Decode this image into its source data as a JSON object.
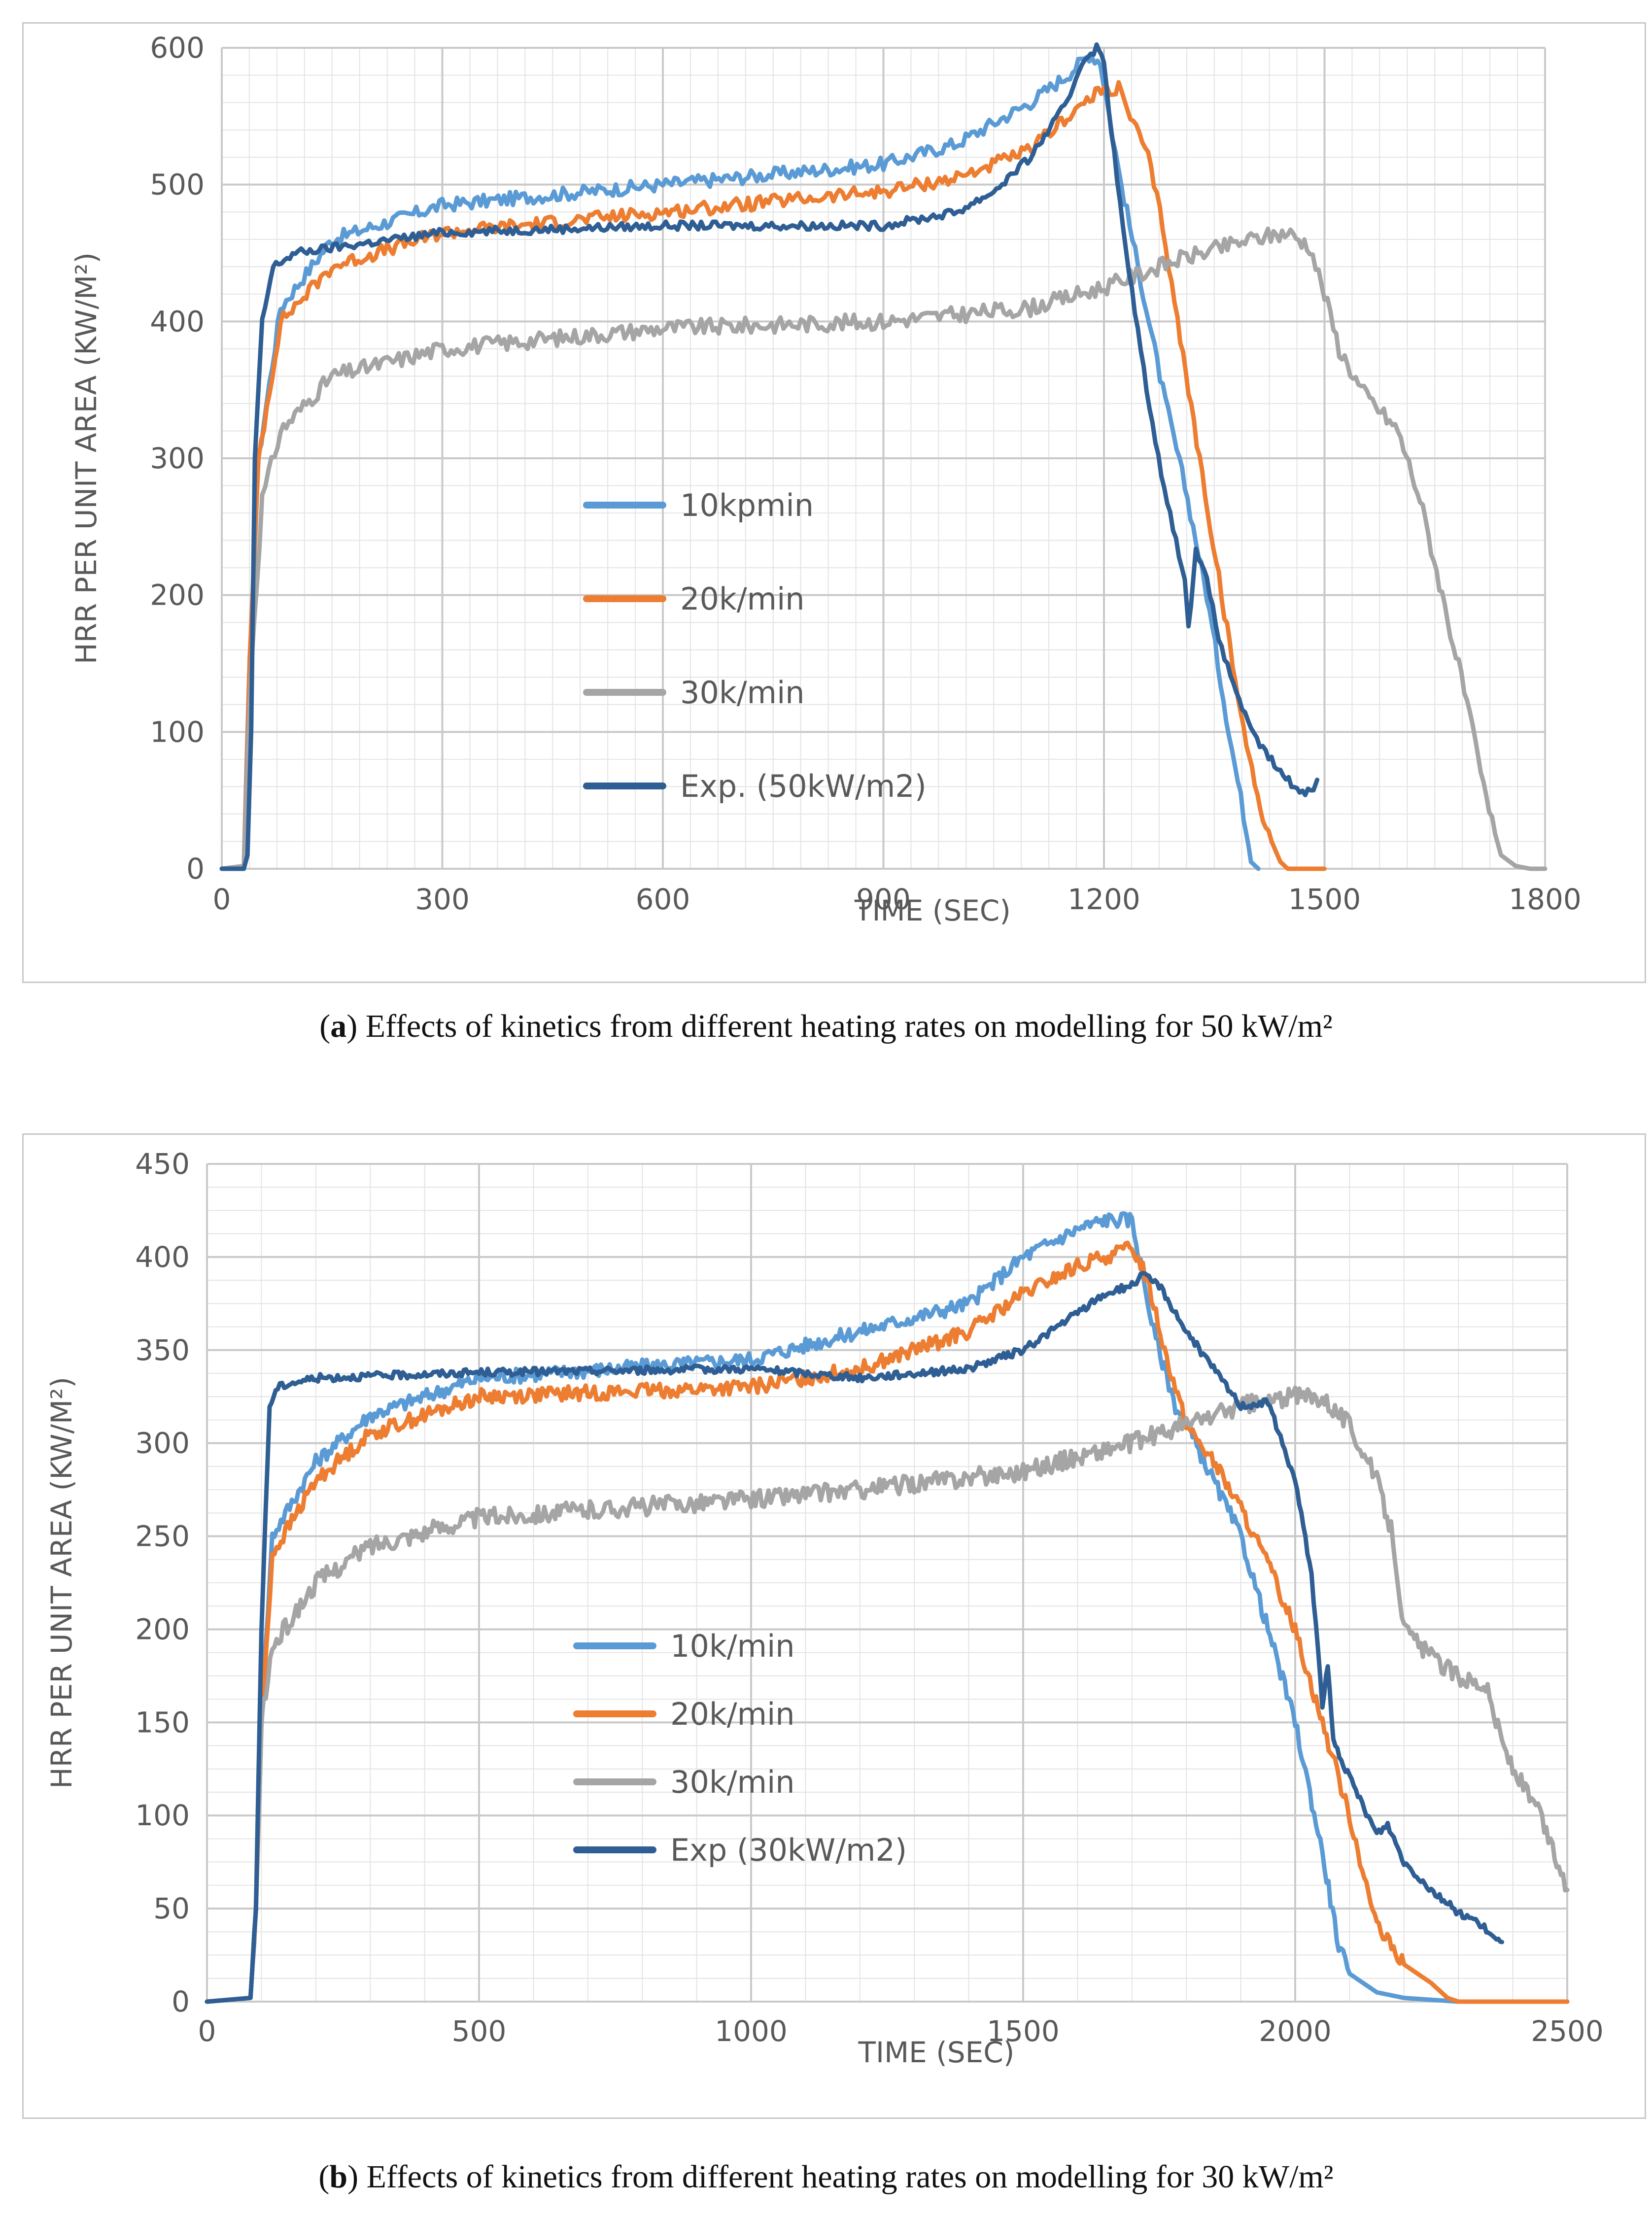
{
  "chart_data": [
    {
      "type": "line",
      "panel": "a",
      "xlabel": "TIME (SEC)",
      "ylabel": "HRR PER UNIT AREA (KW/M²)",
      "xlim": [
        0,
        1800
      ],
      "ylim": [
        0,
        600
      ],
      "xticks": [
        0,
        300,
        600,
        900,
        1200,
        1500,
        1800
      ],
      "yticks": [
        0,
        100,
        200,
        300,
        400,
        500,
        600
      ],
      "grid": true,
      "caption_letter": "a",
      "caption_text": ") Effects of kinetics from different heating rates on modelling for 50 kW/m²",
      "series": [
        {
          "name": "10kpmin",
          "color": "#5b9bd5",
          "noise": 5,
          "x": [
            0,
            30,
            38,
            50,
            80,
            150,
            300,
            600,
            900,
            1000,
            1100,
            1150,
            1180,
            1195,
            1220,
            1250,
            1280,
            1310,
            1340,
            1370,
            1390,
            1400,
            1410
          ],
          "y": [
            0,
            2,
            150,
            300,
            410,
            460,
            485,
            500,
            515,
            530,
            560,
            580,
            595,
            590,
            510,
            430,
            350,
            280,
            200,
            100,
            40,
            5,
            0
          ]
        },
        {
          "name": "20k/min",
          "color": "#ed7d31",
          "noise": 5,
          "x": [
            0,
            30,
            38,
            50,
            80,
            150,
            300,
            600,
            900,
            1000,
            1100,
            1150,
            1200,
            1220,
            1240,
            1260,
            1280,
            1300,
            1330,
            1360,
            1390,
            1420,
            1440,
            1450,
            1500
          ],
          "y": [
            0,
            2,
            150,
            300,
            400,
            440,
            465,
            480,
            495,
            505,
            525,
            550,
            570,
            570,
            545,
            520,
            470,
            400,
            300,
            200,
            100,
            30,
            5,
            0,
            0
          ]
        },
        {
          "name": "30k/min",
          "color": "#a5a5a5",
          "noise": 6,
          "x": [
            0,
            30,
            40,
            55,
            80,
            150,
            300,
            600,
            900,
            1100,
            1200,
            1300,
            1400,
            1450,
            1480,
            1500,
            1520,
            1550,
            1600,
            1630,
            1660,
            1690,
            1720,
            1740,
            1760,
            1780,
            1800
          ],
          "y": [
            0,
            2,
            150,
            270,
            320,
            360,
            380,
            395,
            400,
            410,
            425,
            445,
            460,
            465,
            455,
            420,
            380,
            350,
            320,
            270,
            200,
            130,
            50,
            10,
            2,
            0,
            0
          ]
        },
        {
          "name": "Exp. (50kW/m2)",
          "color": "#2e5e93",
          "noise": 3,
          "x": [
            0,
            20,
            30,
            35,
            40,
            45,
            55,
            70,
            100,
            300,
            600,
            900,
            1000,
            1050,
            1100,
            1150,
            1170,
            1190,
            1200,
            1210,
            1230,
            1250,
            1270,
            1290,
            1310,
            1315,
            1325,
            1340,
            1360,
            1400,
            1440,
            1470,
            1485,
            1490
          ],
          "y": [
            0,
            0,
            0,
            10,
            100,
            300,
            400,
            440,
            450,
            465,
            470,
            470,
            480,
            495,
            520,
            560,
            590,
            600,
            590,
            540,
            450,
            380,
            310,
            260,
            210,
            175,
            235,
            210,
            160,
            100,
            70,
            55,
            60,
            65
          ]
        }
      ]
    },
    {
      "type": "line",
      "panel": "b",
      "xlabel": "TIME (SEC)",
      "ylabel": "HRR PER UNIT AREA (KW/M²)",
      "xlim": [
        0,
        2500
      ],
      "ylim": [
        0,
        450
      ],
      "xticks": [
        0,
        500,
        1000,
        1500,
        2000,
        2500
      ],
      "yticks": [
        0,
        50,
        100,
        150,
        200,
        250,
        300,
        350,
        400,
        450
      ],
      "grid": true,
      "caption_letter": "b",
      "caption_text": ") Effects of kinetics from different heating rates on modelling for 30 kW/m²",
      "series": [
        {
          "name": "10k/min",
          "color": "#5b9bd5",
          "noise": 4,
          "x": [
            0,
            80,
            90,
            100,
            120,
            200,
            300,
            500,
            1000,
            1200,
            1400,
            1500,
            1600,
            1650,
            1700,
            1720,
            1740,
            1760,
            1780,
            1800,
            1850,
            1900,
            1950,
            2000,
            2050,
            2080,
            2100,
            2150,
            2200,
            2300,
            2500
          ],
          "y": [
            0,
            2,
            50,
            150,
            250,
            290,
            315,
            335,
            345,
            360,
            375,
            400,
            415,
            420,
            420,
            390,
            360,
            340,
            320,
            310,
            280,
            250,
            200,
            150,
            80,
            30,
            15,
            5,
            2,
            0,
            0
          ]
        },
        {
          "name": "20k/min",
          "color": "#ed7d31",
          "noise": 4,
          "x": [
            0,
            80,
            90,
            100,
            120,
            200,
            300,
            500,
            1000,
            1200,
            1400,
            1500,
            1600,
            1700,
            1720,
            1740,
            1760,
            1780,
            1800,
            1850,
            1900,
            1950,
            2000,
            2050,
            2100,
            2150,
            2200,
            2250,
            2280,
            2300,
            2500
          ],
          "y": [
            0,
            2,
            50,
            150,
            240,
            280,
            305,
            325,
            330,
            340,
            360,
            380,
            395,
            405,
            395,
            375,
            350,
            330,
            310,
            290,
            265,
            235,
            200,
            150,
            100,
            40,
            20,
            10,
            2,
            0,
            0
          ]
        },
        {
          "name": "30k/min",
          "color": "#a5a5a5",
          "noise": 5,
          "x": [
            0,
            80,
            90,
            100,
            120,
            200,
            300,
            500,
            1000,
            1200,
            1500,
            1700,
            1800,
            1900,
            2000,
            2050,
            2100,
            2150,
            2180,
            2200,
            2250,
            2300,
            2350,
            2380,
            2400,
            2450,
            2500
          ],
          "y": [
            0,
            2,
            50,
            150,
            190,
            225,
            245,
            260,
            270,
            275,
            285,
            300,
            310,
            320,
            325,
            325,
            310,
            280,
            250,
            200,
            185,
            175,
            170,
            140,
            125,
            100,
            60
          ]
        },
        {
          "name": "Exp (30kW/m2)",
          "color": "#2e5e93",
          "noise": 2,
          "x": [
            0,
            80,
            90,
            100,
            115,
            130,
            150,
            200,
            500,
            1000,
            1200,
            1400,
            1500,
            1600,
            1650,
            1700,
            1720,
            1750,
            1800,
            1850,
            1900,
            1950,
            2000,
            2030,
            2050,
            2060,
            2070,
            2100,
            2150,
            2170,
            2200,
            2250,
            2300,
            2340,
            2370,
            2380
          ],
          "y": [
            0,
            2,
            50,
            200,
            320,
            330,
            332,
            335,
            338,
            340,
            335,
            340,
            350,
            370,
            380,
            385,
            390,
            385,
            360,
            340,
            320,
            322,
            280,
            230,
            160,
            180,
            140,
            120,
            90,
            95,
            75,
            60,
            48,
            42,
            32,
            32
          ]
        }
      ]
    }
  ]
}
